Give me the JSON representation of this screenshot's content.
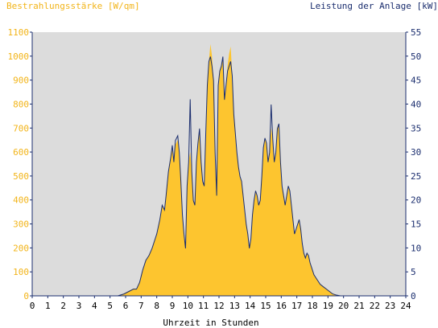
{
  "chart_data": {
    "type": "area",
    "title_left": "Bestrahlungsstärke [W/qm]",
    "title_right": "Leistung der Anlage [kW]",
    "xlabel": "Uhrzeit in Stunden",
    "xlim": [
      0,
      24
    ],
    "x_ticks": [
      "0",
      "1",
      "2",
      "3",
      "4",
      "5",
      "6",
      "7",
      "8",
      "9",
      "10",
      "11",
      "12",
      "13",
      "14",
      "15",
      "16",
      "17",
      "18",
      "19",
      "20",
      "21",
      "22",
      "23",
      "24"
    ],
    "y_left": {
      "lim": [
        0,
        1100
      ],
      "ticks": [
        "0",
        "100",
        "200",
        "300",
        "400",
        "500",
        "600",
        "700",
        "800",
        "900",
        "1000",
        "1100"
      ]
    },
    "y_right": {
      "lim": [
        0,
        55
      ],
      "ticks": [
        "0",
        "5",
        "10",
        "15",
        "20",
        "25",
        "30",
        "35",
        "40",
        "45",
        "50",
        "55"
      ]
    },
    "grid": false,
    "colors": {
      "irradiance": "#fdc52f",
      "power": "#1a2d6e",
      "plot_bg": "#dcdcdc",
      "axis": "#1a2d6e"
    },
    "series": [
      {
        "name": "Bestrahlungsstärke [W/qm]",
        "axis": "left",
        "x": [
          0,
          5.5,
          5.9,
          6.2,
          6.5,
          6.7,
          6.9,
          7.1,
          7.3,
          7.5,
          7.7,
          7.9,
          8.0,
          8.2,
          8.35,
          8.5,
          8.6,
          8.75,
          8.9,
          9.0,
          9.1,
          9.2,
          9.35,
          9.45,
          9.55,
          9.65,
          9.75,
          9.85,
          9.95,
          10.05,
          10.15,
          10.25,
          10.35,
          10.45,
          10.55,
          10.65,
          10.75,
          10.85,
          10.95,
          11.05,
          11.15,
          11.25,
          11.35,
          11.45,
          11.55,
          11.65,
          11.75,
          11.85,
          11.95,
          12.05,
          12.15,
          12.25,
          12.35,
          12.45,
          12.55,
          12.65,
          12.75,
          12.85,
          12.95,
          13.05,
          13.15,
          13.25,
          13.35,
          13.45,
          13.55,
          13.65,
          13.75,
          13.85,
          13.95,
          14.05,
          14.15,
          14.25,
          14.35,
          14.45,
          14.55,
          14.65,
          14.75,
          14.85,
          14.95,
          15.05,
          15.15,
          15.25,
          15.35,
          15.45,
          15.55,
          15.65,
          15.75,
          15.85,
          15.95,
          16.05,
          16.15,
          16.25,
          16.35,
          16.45,
          16.55,
          16.65,
          16.75,
          16.85,
          16.95,
          17.05,
          17.15,
          17.25,
          17.35,
          17.45,
          17.55,
          17.65,
          17.75,
          17.85,
          17.95,
          18.1,
          18.3,
          18.5,
          18.7,
          18.9,
          19.1,
          19.3,
          19.5,
          19.8,
          20.2,
          24
        ],
        "values": [
          0,
          0,
          10,
          20,
          30,
          30,
          60,
          110,
          150,
          170,
          200,
          240,
          260,
          320,
          380,
          360,
          420,
          520,
          580,
          610,
          560,
          630,
          650,
          600,
          480,
          340,
          260,
          200,
          460,
          560,
          600,
          520,
          400,
          380,
          560,
          640,
          700,
          560,
          480,
          460,
          680,
          880,
          980,
          1050,
          1000,
          900,
          600,
          420,
          880,
          940,
          960,
          1000,
          820,
          880,
          960,
          1010,
          1040,
          920,
          760,
          680,
          600,
          540,
          500,
          480,
          420,
          360,
          300,
          260,
          200,
          240,
          340,
          400,
          440,
          420,
          380,
          400,
          500,
          620,
          660,
          640,
          560,
          600,
          700,
          660,
          560,
          600,
          700,
          720,
          560,
          460,
          420,
          380,
          420,
          460,
          440,
          380,
          320,
          260,
          280,
          300,
          320,
          280,
          220,
          180,
          160,
          180,
          170,
          140,
          120,
          90,
          70,
          50,
          40,
          30,
          20,
          10,
          5,
          0,
          0,
          0
        ]
      },
      {
        "name": "Leistung der Anlage [kW]",
        "axis": "right",
        "x": [
          0,
          5.5,
          5.9,
          6.2,
          6.5,
          6.7,
          6.9,
          7.1,
          7.3,
          7.5,
          7.7,
          7.9,
          8.0,
          8.2,
          8.35,
          8.5,
          8.6,
          8.75,
          8.9,
          9.0,
          9.1,
          9.2,
          9.35,
          9.45,
          9.55,
          9.65,
          9.75,
          9.85,
          9.95,
          10.05,
          10.15,
          10.25,
          10.35,
          10.45,
          10.55,
          10.65,
          10.75,
          10.85,
          10.95,
          11.05,
          11.15,
          11.25,
          11.35,
          11.45,
          11.55,
          11.65,
          11.75,
          11.85,
          11.95,
          12.05,
          12.15,
          12.25,
          12.35,
          12.45,
          12.55,
          12.65,
          12.75,
          12.85,
          12.95,
          13.05,
          13.15,
          13.25,
          13.35,
          13.45,
          13.55,
          13.65,
          13.75,
          13.85,
          13.95,
          14.05,
          14.15,
          14.25,
          14.35,
          14.45,
          14.55,
          14.65,
          14.75,
          14.85,
          14.95,
          15.05,
          15.15,
          15.25,
          15.35,
          15.45,
          15.55,
          15.65,
          15.75,
          15.85,
          15.95,
          16.05,
          16.15,
          16.25,
          16.35,
          16.45,
          16.55,
          16.65,
          16.75,
          16.85,
          16.95,
          17.05,
          17.15,
          17.25,
          17.35,
          17.45,
          17.55,
          17.65,
          17.75,
          17.85,
          17.95,
          18.1,
          18.3,
          18.5,
          18.7,
          18.9,
          19.1,
          19.3,
          19.5,
          19.8,
          20.2,
          24
        ],
        "values": [
          0,
          0,
          0.4,
          0.9,
          1.4,
          1.4,
          2.8,
          5.4,
          7.4,
          8.4,
          9.9,
          11.9,
          12.9,
          15.9,
          18.9,
          17.9,
          20.9,
          25.9,
          28.9,
          31.4,
          27.9,
          32.4,
          33.4,
          29.9,
          23.9,
          16.9,
          12.9,
          9.9,
          22.9,
          27.9,
          41.0,
          25.9,
          19.9,
          18.9,
          27.9,
          31.9,
          34.9,
          27.9,
          23.9,
          22.9,
          33.9,
          43.9,
          48.9,
          49.9,
          47.9,
          44.9,
          29.9,
          20.9,
          43.9,
          46.9,
          47.9,
          49.9,
          40.9,
          43.9,
          46.9,
          47.9,
          48.9,
          45.9,
          37.9,
          33.9,
          29.9,
          26.9,
          24.9,
          23.9,
          20.9,
          17.9,
          14.9,
          12.9,
          9.9,
          11.9,
          16.9,
          19.9,
          21.9,
          20.9,
          18.9,
          19.9,
          24.9,
          30.9,
          32.9,
          31.9,
          27.9,
          29.9,
          39.9,
          32.9,
          27.9,
          29.9,
          34.9,
          35.9,
          27.9,
          22.9,
          20.9,
          18.9,
          20.9,
          22.9,
          21.9,
          18.9,
          15.9,
          12.9,
          13.9,
          14.9,
          15.9,
          13.9,
          10.9,
          8.9,
          7.9,
          8.9,
          8.4,
          6.9,
          5.9,
          4.4,
          3.4,
          2.4,
          1.9,
          1.4,
          0.9,
          0.4,
          0.2,
          0,
          0,
          0
        ]
      }
    ]
  }
}
